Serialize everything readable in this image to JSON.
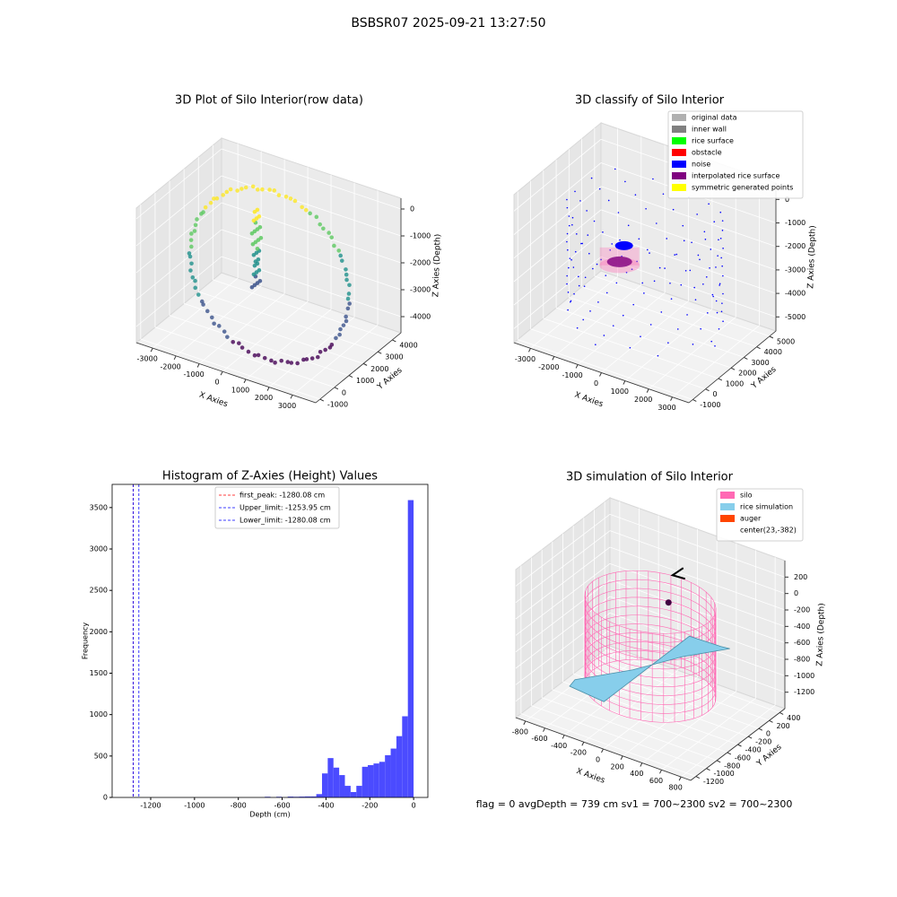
{
  "title": "BSBSR07 2025-09-21 13:27:50",
  "footer": "flag = 0    avgDepth = 739 cm  sv1 = 700~2300  sv2 = 700~2300",
  "chart_data": [
    {
      "type": "scatter3d",
      "title": "3D Plot of Silo Interior(row data)",
      "x_label": "X Axies",
      "y_label": "Y Axies",
      "z_label": "Z Axies (Depth)",
      "xlim": [
        -3700,
        4000
      ],
      "ylim": [
        -1300,
        4600
      ],
      "zlim": [
        -4600,
        400
      ],
      "xticks": [
        -3000,
        -2000,
        -1000,
        0,
        1000,
        2000,
        3000
      ],
      "yticks": [
        -1000,
        0,
        1000,
        2000,
        3000,
        4000
      ],
      "zticks": [
        -4000,
        -3000,
        -2000,
        -1000,
        0
      ],
      "grid": true
    },
    {
      "type": "scatter3d",
      "title": "3D classify of Silo Interior",
      "x_label": "X Axies",
      "y_label": "Y Axies",
      "z_label": "Z Axies (Depth)",
      "xlim": [
        -3700,
        3700
      ],
      "ylim": [
        -1300,
        5500
      ],
      "zlim": [
        -5600,
        700
      ],
      "xticks": [
        -3000,
        -2000,
        -1000,
        0,
        1000,
        2000,
        3000
      ],
      "yticks": [
        -1000,
        0,
        1000,
        2000,
        3000,
        4000,
        5000
      ],
      "zticks": [
        -5000,
        -4000,
        -3000,
        -2000,
        -1000,
        0
      ],
      "grid": true,
      "legend": "upper right",
      "series": [
        {
          "name": "original data",
          "color": "#b0b0b0"
        },
        {
          "name": "inner wall",
          "color": "#808080"
        },
        {
          "name": "rice surface",
          "color": "#00ff00"
        },
        {
          "name": "obstacle",
          "color": "#ff0000"
        },
        {
          "name": "noise",
          "color": "#0000ff"
        },
        {
          "name": "interpolated rice surface",
          "color": "#800080"
        },
        {
          "name": "symmetric generated points",
          "color": "#ffff00"
        }
      ]
    },
    {
      "type": "histogram",
      "title": "Histogram of Z-Axies (Height) Values",
      "x_label": "Depth (cm)",
      "y_label": "Frequency",
      "color": "#4b4bff",
      "bins": [
        -1280.08,
        -1253.96,
        -1227.84,
        -1201.72,
        -1175.6,
        -1149.48,
        -1123.36,
        -1097.24,
        -1071.12,
        -1045.0,
        -1018.88,
        -992.76,
        -966.64,
        -940.52,
        -914.4,
        -888.28,
        -862.16,
        -836.04,
        -809.92,
        -783.8,
        -757.68,
        -731.56,
        -705.44,
        -679.32,
        -653.2,
        -627.08,
        -600.96,
        -574.84,
        -548.72,
        -522.6,
        -496.48,
        -470.36,
        -444.24,
        -418.12,
        -392.0,
        -365.88,
        -339.76,
        -313.64,
        -287.52,
        -261.4,
        -235.28,
        -209.16,
        -183.04,
        -156.92,
        -130.8,
        -104.68,
        -78.56,
        -52.44,
        -26.32,
        -0.2
      ],
      "counts": [
        1,
        0,
        0,
        0,
        0,
        0,
        0,
        0,
        0,
        0,
        0,
        0,
        0,
        0,
        0,
        0,
        0,
        0,
        0,
        0,
        0,
        0,
        0,
        8,
        0,
        8,
        0,
        10,
        8,
        10,
        12,
        12,
        40,
        290,
        475,
        360,
        270,
        140,
        65,
        140,
        370,
        390,
        410,
        430,
        510,
        590,
        740,
        980,
        3590
      ],
      "xlim": [
        -1376,
        65
      ],
      "ylim": [
        0,
        3780
      ],
      "xticks": [
        -1200,
        -1000,
        -800,
        -600,
        -400,
        -200,
        0
      ],
      "yticks": [
        0,
        500,
        1000,
        1500,
        2000,
        2500,
        3000,
        3500
      ],
      "legend": "upper center",
      "vlines": [
        {
          "label": "first_peak: -1280.08 cm",
          "value": -1280.08,
          "color": "#ff0000"
        },
        {
          "label": "Upper_limit: -1253.95 cm",
          "value": -1253.95,
          "color": "#0000ff"
        },
        {
          "label": "Lower_limit: -1280.08 cm",
          "value": -1280.08,
          "color": "#0000ff"
        }
      ]
    },
    {
      "type": "surface3d",
      "title": "3D simulation of Silo Interior",
      "x_label": "X Axies",
      "y_label": "Y Axies",
      "z_label": "Z Axies (Depth)",
      "xlim": [
        -900,
        900
      ],
      "ylim": [
        -1300,
        500
      ],
      "zlim": [
        -1400,
        400
      ],
      "xticks": [
        -800,
        -600,
        -400,
        -200,
        0,
        200,
        400,
        600,
        800
      ],
      "yticks": [
        -1200,
        -1000,
        -800,
        -600,
        -400,
        -200,
        0,
        200,
        400
      ],
      "zticks": [
        -1200,
        -1000,
        -800,
        -600,
        -400,
        -200,
        0,
        200
      ],
      "grid": true,
      "legend": "upper right",
      "series": [
        {
          "name": "silo",
          "color": "#ff69b4"
        },
        {
          "name": "rice simulation",
          "color": "#87ceeb"
        },
        {
          "name": "auger",
          "color": "#ff4500"
        },
        {
          "name": "center(23,-382)"
        }
      ]
    }
  ]
}
